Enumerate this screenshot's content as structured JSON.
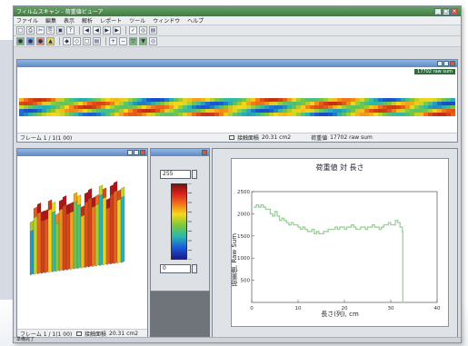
{
  "window": {
    "title": "フィルムスキャン - 荷重値ビューア"
  },
  "menu": [
    "ファイル",
    "編集",
    "表示",
    "解析",
    "レポート",
    "ツール",
    "ウィンドウ",
    "ヘルプ"
  ],
  "toolbar1": [
    "□",
    "⎙",
    "✂",
    "⎘",
    "▣",
    "?",
    "◀",
    "◀",
    "▶",
    "▶",
    "✓",
    "◎",
    "▤"
  ],
  "toolbar2": [
    "●",
    "●",
    "●",
    "▲",
    "◆",
    "◇",
    "□",
    "▤",
    "+",
    "−",
    "▽",
    "▼",
    "◎"
  ],
  "strip_panel": {
    "title": "",
    "badge": "17702 raw sum",
    "frame": "フレーム 1 / 1(1 00)",
    "area_label": "接触面積",
    "area_value": "20.31 cm2",
    "load_label": "荷重値",
    "load_value": "17702 raw sum"
  },
  "surface_panel": {
    "title": "",
    "frame": "フレーム 1 / 1(1 00)",
    "area_label": "接触面積",
    "area_value": "20.31 cm2"
  },
  "scale_panel": {
    "title": "",
    "max_value": "255",
    "min_value": "0"
  },
  "chart_data": {
    "type": "line",
    "title": "荷重値 対 長さ",
    "xlabel": "長さ(列), cm",
    "ylabel": "荷重値, Raw Sum",
    "xlim": [
      0,
      40
    ],
    "ylim": [
      0,
      2500
    ],
    "xticks": [
      0,
      10,
      20,
      30,
      40
    ],
    "yticks": [
      500,
      1000,
      1500,
      2000,
      2500
    ],
    "series": [
      {
        "color": "#9ccf9c",
        "x": [
          0.5,
          1,
          1.5,
          2,
          2.5,
          3,
          3.5,
          4,
          4.5,
          5,
          5.5,
          6,
          6.5,
          7,
          7.5,
          8,
          8.5,
          9,
          9.5,
          10,
          10.5,
          11,
          11.5,
          12,
          12.5,
          13,
          13.5,
          14,
          14.5,
          15,
          15.5,
          16,
          16.5,
          17,
          17.5,
          18,
          18.5,
          19,
          19.5,
          20,
          20.5,
          21,
          21.5,
          22,
          22.5,
          23,
          23.5,
          24,
          24.5,
          25,
          25.5,
          26,
          26.5,
          27,
          27.5,
          28,
          28.5,
          29,
          29.5,
          30,
          30.5,
          31,
          31.5,
          32,
          32.5,
          32.6
        ],
        "y": [
          2150,
          2200,
          2150,
          2200,
          2150,
          2100,
          2100,
          2000,
          1950,
          2050,
          1950,
          1850,
          1900,
          1850,
          1800,
          1750,
          1800,
          1750,
          1750,
          1700,
          1650,
          1700,
          1650,
          1600,
          1600,
          1650,
          1550,
          1600,
          1550,
          1550,
          1600,
          1600,
          1650,
          1650,
          1650,
          1700,
          1650,
          1700,
          1700,
          1650,
          1700,
          1700,
          1750,
          1700,
          1650,
          1650,
          1700,
          1700,
          1650,
          1700,
          1700,
          1750,
          1700,
          1700,
          1650,
          1700,
          1750,
          1750,
          1800,
          1750,
          1750,
          1850,
          1800,
          1700,
          1600,
          0
        ]
      }
    ]
  },
  "status": {
    "text": "準備完了"
  }
}
